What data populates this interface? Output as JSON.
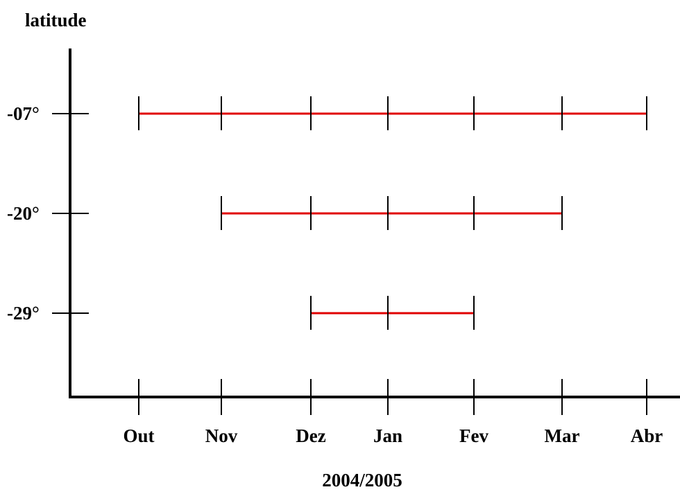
{
  "chart_data": {
    "type": "range-bar",
    "title": "",
    "ylabel": "latitude",
    "xlabel": "2004/2005",
    "categories": [
      "Out",
      "Nov",
      "Dez",
      "Jan",
      "Fev",
      "Mar",
      "Abr"
    ],
    "y_tick_labels": [
      "-07°",
      "-20°",
      "-29°"
    ],
    "series": [
      {
        "latitude": "-07°",
        "start": "Out",
        "end": "Abr",
        "months": [
          "Out",
          "Nov",
          "Dez",
          "Jan",
          "Fev",
          "Mar",
          "Abr"
        ]
      },
      {
        "latitude": "-20°",
        "start": "Nov",
        "end": "Mar",
        "months": [
          "Nov",
          "Dez",
          "Jan",
          "Fev",
          "Mar"
        ]
      },
      {
        "latitude": "-29°",
        "start": "Dez",
        "end": "Fev",
        "months": [
          "Dez",
          "Jan",
          "Fev"
        ]
      }
    ],
    "range_color": "#e00000",
    "axis_color": "#000000",
    "grid": false,
    "legend": "none"
  }
}
